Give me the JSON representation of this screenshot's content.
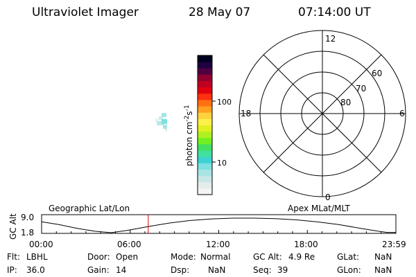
{
  "header": {
    "title": "Ultraviolet Imager",
    "date": "28 May 07",
    "time": "07:14:00 UT"
  },
  "colorbar": {
    "unit_label": "photon cm",
    "unit_sup1": "-2",
    "unit_mid": "s",
    "unit_sup2": "-1",
    "tick_100": "100",
    "tick_10": "10",
    "colors": [
      "#f4f4f4",
      "#e4ecec",
      "#c8e6e6",
      "#a8e4e4",
      "#7ee0e0",
      "#3cd2d2",
      "#40e0a0",
      "#40e060",
      "#70f020",
      "#b0f020",
      "#e0f020",
      "#fff04a",
      "#ffd040",
      "#ffa020",
      "#ff7010",
      "#ff3010",
      "#e00010",
      "#c00020",
      "#900030",
      "#500040",
      "#200040",
      "#000020"
    ]
  },
  "polar": {
    "label_12": "12",
    "label_0": "0",
    "label_18": "18",
    "label_6": "6",
    "label_60": "60",
    "label_70": "70",
    "label_80": "80"
  },
  "orbit": {
    "left_title": "Geographic Lat/Lon",
    "right_title": "Apex MLat/MLT",
    "axis_label": "GC Alt",
    "y_top": "9.0",
    "y_bottom": "1.8",
    "x_ticks": [
      "00:00",
      "06:00",
      "12:00",
      "18:00",
      "23:59"
    ],
    "current_time_fraction": 0.301,
    "curve_color": "#000000",
    "marker_color": "#e00000"
  },
  "info": {
    "row1": {
      "flt_label": "Flt:",
      "flt_value": "LBHL",
      "door_label": "Door:",
      "door_value": "Open",
      "mode_label": "Mode:",
      "mode_value": "Normal",
      "gcalt_label": "GC Alt:",
      "gcalt_value": "4.9 Re",
      "glat_label": "GLat:",
      "glat_value": "NaN"
    },
    "row2": {
      "ip_label": "IP:",
      "ip_value": "36.0",
      "gain_label": "Gain:",
      "gain_value": "14",
      "dsp_label": "Dsp:",
      "dsp_value": "NaN",
      "seq_label": "Seq:",
      "seq_value": "39",
      "glon_label": "GLon:",
      "glon_value": "NaN"
    }
  }
}
